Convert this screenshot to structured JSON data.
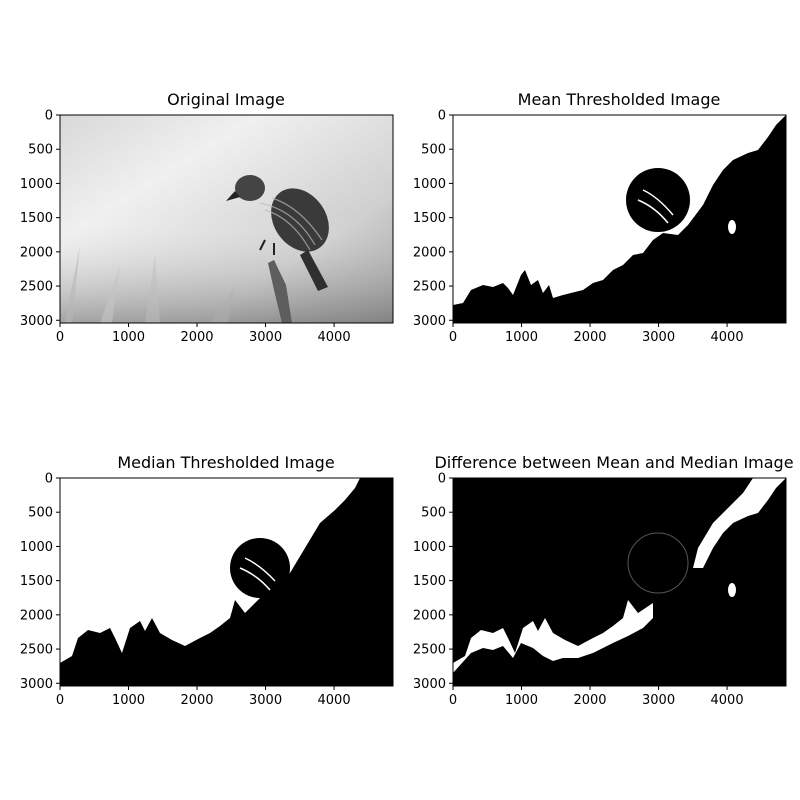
{
  "chart_data": [
    {
      "type": "image",
      "title": "Original Image",
      "content": "grayscale photo",
      "xlim": [
        0,
        4860
      ],
      "ylim": [
        3040,
        0
      ],
      "xticks": [
        "0",
        "1000",
        "2000",
        "3000",
        "4000"
      ],
      "yticks": [
        "0",
        "500",
        "1000",
        "1500",
        "2000",
        "2500",
        "3000"
      ]
    },
    {
      "type": "image",
      "title": "Mean Thresholded Image",
      "content": "binary mask",
      "xlim": [
        0,
        4860
      ],
      "ylim": [
        3040,
        0
      ],
      "xticks": [
        "0",
        "1000",
        "2000",
        "3000",
        "4000"
      ],
      "yticks": [
        "0",
        "500",
        "1000",
        "1500",
        "2000",
        "2500",
        "3000"
      ]
    },
    {
      "type": "image",
      "title": "Median Thresholded Image",
      "content": "binary mask",
      "xlim": [
        0,
        4860
      ],
      "ylim": [
        3040,
        0
      ],
      "xticks": [
        "0",
        "1000",
        "2000",
        "3000",
        "4000"
      ],
      "yticks": [
        "0",
        "500",
        "1000",
        "1500",
        "2000",
        "2500",
        "3000"
      ]
    },
    {
      "type": "image",
      "title": "Difference between Mean and Median Image",
      "content": "binary mask",
      "xlim": [
        0,
        4860
      ],
      "ylim": [
        3040,
        0
      ],
      "xticks": [
        "0",
        "1000",
        "2000",
        "3000",
        "4000"
      ],
      "yticks": [
        "0",
        "500",
        "1000",
        "1500",
        "2000",
        "2500",
        "3000"
      ]
    }
  ],
  "colors": {
    "background": "#ffffff",
    "mask_white": "#ffffff",
    "mask_black": "#000000",
    "photo_light": "#eeeeee",
    "photo_mid": "#9a9a9a",
    "bird_dark": "#2a2a2a"
  }
}
